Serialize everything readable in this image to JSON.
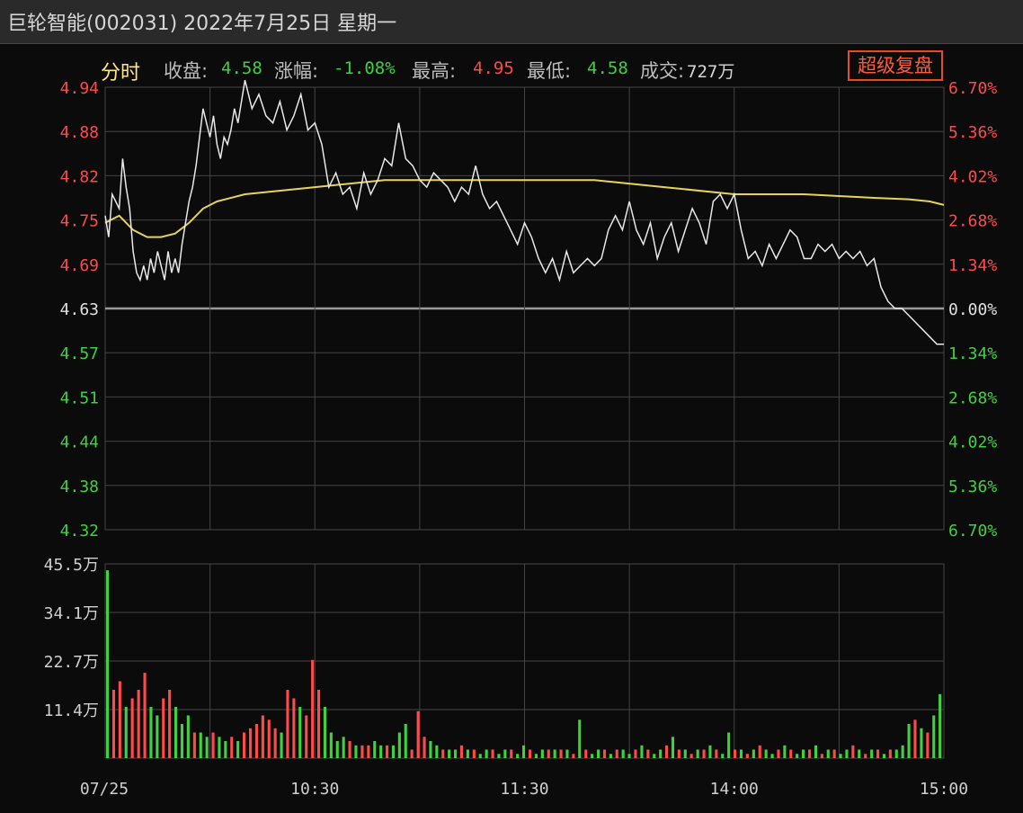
{
  "header": {
    "title": "巨轮智能(002031) 2022年7月25日 星期一"
  },
  "info": {
    "tab": "分时",
    "close_label": "收盘:",
    "close_value": "4.58",
    "change_label": "涨幅:",
    "change_value": "-1.08%",
    "high_label": "最高:",
    "high_value": "4.95",
    "low_label": "最低:",
    "low_value": "4.58",
    "volume_label": "成交:",
    "volume_value": "727万",
    "super_button": "超级复盘"
  },
  "colors": {
    "up": "#ff4a4a",
    "down": "#3fd23f",
    "price_line": "#e8e8e8",
    "avg_line": "#e6d35a",
    "grid": "#444444",
    "base_line": "#9a9a9a"
  },
  "chart_data": {
    "type": "line",
    "title": "",
    "prev_close": 4.63,
    "ylim": [
      4.32,
      4.94
    ],
    "y_ticks_left": [
      "4.94",
      "4.88",
      "4.82",
      "4.75",
      "4.69",
      "4.63",
      "4.57",
      "4.51",
      "4.44",
      "4.38",
      "4.32"
    ],
    "y_ticks_right": [
      "6.70%",
      "5.36%",
      "4.02%",
      "2.68%",
      "1.34%",
      "0.00%",
      "1.34%",
      "2.68%",
      "4.02%",
      "5.36%",
      "6.70%"
    ],
    "x_ticks": [
      "07/25",
      "10:30",
      "11:30",
      "14:00",
      "15:00"
    ],
    "x_range_minutes": [
      0,
      240
    ],
    "price_series": {
      "name": "",
      "x": [
        0,
        1,
        2,
        3,
        4,
        5,
        6,
        7,
        8,
        9,
        10,
        11,
        12,
        13,
        14,
        15,
        16,
        17,
        18,
        19,
        20,
        21,
        22,
        23,
        24,
        25,
        26,
        27,
        28,
        29,
        30,
        31,
        32,
        33,
        34,
        35,
        36,
        37,
        38,
        39,
        40,
        42,
        44,
        46,
        48,
        50,
        52,
        54,
        56,
        58,
        60,
        62,
        64,
        66,
        68,
        70,
        72,
        74,
        76,
        78,
        80,
        82,
        84,
        86,
        88,
        90,
        92,
        94,
        96,
        98,
        100,
        102,
        104,
        106,
        108,
        110,
        112,
        114,
        116,
        118,
        120,
        122,
        124,
        126,
        128,
        130,
        132,
        134,
        136,
        138,
        140,
        142,
        144,
        146,
        148,
        150,
        152,
        154,
        156,
        158,
        160,
        162,
        164,
        166,
        168,
        170,
        172,
        174,
        176,
        178,
        180,
        182,
        184,
        186,
        188,
        190,
        192,
        194,
        196,
        198,
        200,
        202,
        204,
        206,
        208,
        210,
        212,
        214,
        216,
        218,
        220,
        222,
        224,
        226,
        228,
        230,
        232,
        234,
        236,
        238,
        240
      ],
      "y": [
        4.76,
        4.73,
        4.79,
        4.78,
        4.77,
        4.84,
        4.8,
        4.77,
        4.71,
        4.68,
        4.67,
        4.69,
        4.67,
        4.7,
        4.68,
        4.71,
        4.69,
        4.67,
        4.71,
        4.68,
        4.7,
        4.68,
        4.72,
        4.75,
        4.78,
        4.8,
        4.83,
        4.87,
        4.91,
        4.89,
        4.87,
        4.9,
        4.86,
        4.84,
        4.87,
        4.86,
        4.88,
        4.91,
        4.89,
        4.92,
        4.95,
        4.91,
        4.93,
        4.9,
        4.89,
        4.92,
        4.88,
        4.9,
        4.93,
        4.88,
        4.89,
        4.86,
        4.8,
        4.82,
        4.79,
        4.8,
        4.77,
        4.82,
        4.79,
        4.81,
        4.84,
        4.83,
        4.89,
        4.84,
        4.83,
        4.81,
        4.8,
        4.82,
        4.81,
        4.8,
        4.78,
        4.8,
        4.79,
        4.83,
        4.79,
        4.77,
        4.78,
        4.76,
        4.74,
        4.72,
        4.75,
        4.73,
        4.7,
        4.68,
        4.7,
        4.67,
        4.71,
        4.68,
        4.69,
        4.7,
        4.69,
        4.7,
        4.74,
        4.76,
        4.74,
        4.78,
        4.74,
        4.72,
        4.75,
        4.7,
        4.73,
        4.75,
        4.71,
        4.74,
        4.77,
        4.75,
        4.72,
        4.78,
        4.79,
        4.77,
        4.79,
        4.74,
        4.7,
        4.71,
        4.69,
        4.72,
        4.7,
        4.72,
        4.74,
        4.73,
        4.7,
        4.7,
        4.72,
        4.71,
        4.72,
        4.7,
        4.71,
        4.7,
        4.71,
        4.69,
        4.7,
        4.66,
        4.64,
        4.63,
        4.63,
        4.62,
        4.61,
        4.6,
        4.59,
        4.58,
        4.58
      ]
    },
    "avg_series": {
      "name": "",
      "x": [
        0,
        4,
        8,
        12,
        16,
        20,
        24,
        28,
        32,
        40,
        60,
        80,
        100,
        120,
        140,
        160,
        180,
        200,
        220,
        230,
        236,
        240
      ],
      "y": [
        4.75,
        4.76,
        4.74,
        4.73,
        4.73,
        4.735,
        4.75,
        4.77,
        4.78,
        4.79,
        4.8,
        4.81,
        4.81,
        4.81,
        4.81,
        4.8,
        4.79,
        4.79,
        4.785,
        4.783,
        4.78,
        4.775
      ]
    },
    "volume": {
      "ylim": [
        0,
        45.5
      ],
      "y_ticks": [
        "45.5万",
        "34.1万",
        "22.7万",
        "11.4万"
      ],
      "bars": [
        [
          44,
          "down"
        ],
        [
          16,
          "up"
        ],
        [
          18,
          "up"
        ],
        [
          12,
          "down"
        ],
        [
          14,
          "up"
        ],
        [
          16,
          "up"
        ],
        [
          20,
          "up"
        ],
        [
          12,
          "down"
        ],
        [
          10,
          "down"
        ],
        [
          14,
          "up"
        ],
        [
          16,
          "up"
        ],
        [
          12,
          "down"
        ],
        [
          8,
          "down"
        ],
        [
          10,
          "down"
        ],
        [
          6,
          "up"
        ],
        [
          6,
          "down"
        ],
        [
          5,
          "down"
        ],
        [
          6,
          "up"
        ],
        [
          5,
          "down"
        ],
        [
          4,
          "down"
        ],
        [
          5,
          "up"
        ],
        [
          4,
          "down"
        ],
        [
          6,
          "up"
        ],
        [
          7,
          "up"
        ],
        [
          8,
          "up"
        ],
        [
          10,
          "up"
        ],
        [
          9,
          "up"
        ],
        [
          7,
          "up"
        ],
        [
          6,
          "down"
        ],
        [
          16,
          "up"
        ],
        [
          14,
          "up"
        ],
        [
          12,
          "down"
        ],
        [
          10,
          "up"
        ],
        [
          23,
          "up"
        ],
        [
          16,
          "up"
        ],
        [
          12,
          "down"
        ],
        [
          6,
          "down"
        ],
        [
          4,
          "down"
        ],
        [
          5,
          "down"
        ],
        [
          4,
          "up"
        ],
        [
          3,
          "down"
        ],
        [
          3,
          "up"
        ],
        [
          3,
          "up"
        ],
        [
          4,
          "down"
        ],
        [
          3,
          "down"
        ],
        [
          3,
          "up"
        ],
        [
          3,
          "down"
        ],
        [
          6,
          "down"
        ],
        [
          8,
          "down"
        ],
        [
          2,
          "up"
        ],
        [
          11,
          "up"
        ],
        [
          5,
          "up"
        ],
        [
          4,
          "down"
        ],
        [
          3,
          "down"
        ],
        [
          2,
          "up"
        ],
        [
          2,
          "down"
        ],
        [
          2,
          "down"
        ],
        [
          3,
          "up"
        ],
        [
          2,
          "down"
        ],
        [
          2,
          "up"
        ],
        [
          1,
          "down"
        ],
        [
          2,
          "down"
        ],
        [
          2,
          "up"
        ],
        [
          1,
          "down"
        ],
        [
          2,
          "down"
        ],
        [
          2,
          "up"
        ],
        [
          1,
          "down"
        ],
        [
          3,
          "down"
        ],
        [
          2,
          "up"
        ],
        [
          1,
          "down"
        ],
        [
          2,
          "down"
        ],
        [
          2,
          "up"
        ],
        [
          2,
          "down"
        ],
        [
          2,
          "up"
        ],
        [
          2,
          "down"
        ],
        [
          1,
          "up"
        ],
        [
          9,
          "down"
        ],
        [
          2,
          "up"
        ],
        [
          1,
          "down"
        ],
        [
          2,
          "down"
        ],
        [
          2,
          "up"
        ],
        [
          1,
          "down"
        ],
        [
          2,
          "up"
        ],
        [
          2,
          "down"
        ],
        [
          1,
          "down"
        ],
        [
          2,
          "up"
        ],
        [
          3,
          "down"
        ],
        [
          2,
          "up"
        ],
        [
          1,
          "down"
        ],
        [
          2,
          "down"
        ],
        [
          3,
          "up"
        ],
        [
          5,
          "down"
        ],
        [
          2,
          "up"
        ],
        [
          2,
          "down"
        ],
        [
          1,
          "up"
        ],
        [
          2,
          "down"
        ],
        [
          2,
          "up"
        ],
        [
          3,
          "down"
        ],
        [
          2,
          "up"
        ],
        [
          1,
          "down"
        ],
        [
          6,
          "down"
        ],
        [
          2,
          "up"
        ],
        [
          2,
          "down"
        ],
        [
          1,
          "up"
        ],
        [
          2,
          "down"
        ],
        [
          3,
          "up"
        ],
        [
          2,
          "down"
        ],
        [
          1,
          "down"
        ],
        [
          2,
          "up"
        ],
        [
          3,
          "down"
        ],
        [
          2,
          "up"
        ],
        [
          1,
          "down"
        ],
        [
          2,
          "down"
        ],
        [
          2,
          "up"
        ],
        [
          3,
          "down"
        ],
        [
          1,
          "up"
        ],
        [
          2,
          "down"
        ],
        [
          2,
          "up"
        ],
        [
          1,
          "down"
        ],
        [
          2,
          "down"
        ],
        [
          3,
          "up"
        ],
        [
          2,
          "down"
        ],
        [
          1,
          "up"
        ],
        [
          2,
          "down"
        ],
        [
          2,
          "up"
        ],
        [
          1,
          "down"
        ],
        [
          2,
          "up"
        ],
        [
          2,
          "down"
        ],
        [
          3,
          "down"
        ],
        [
          8,
          "down"
        ],
        [
          9,
          "up"
        ],
        [
          7,
          "down"
        ],
        [
          6,
          "up"
        ],
        [
          10,
          "down"
        ],
        [
          15,
          "down"
        ]
      ]
    }
  }
}
